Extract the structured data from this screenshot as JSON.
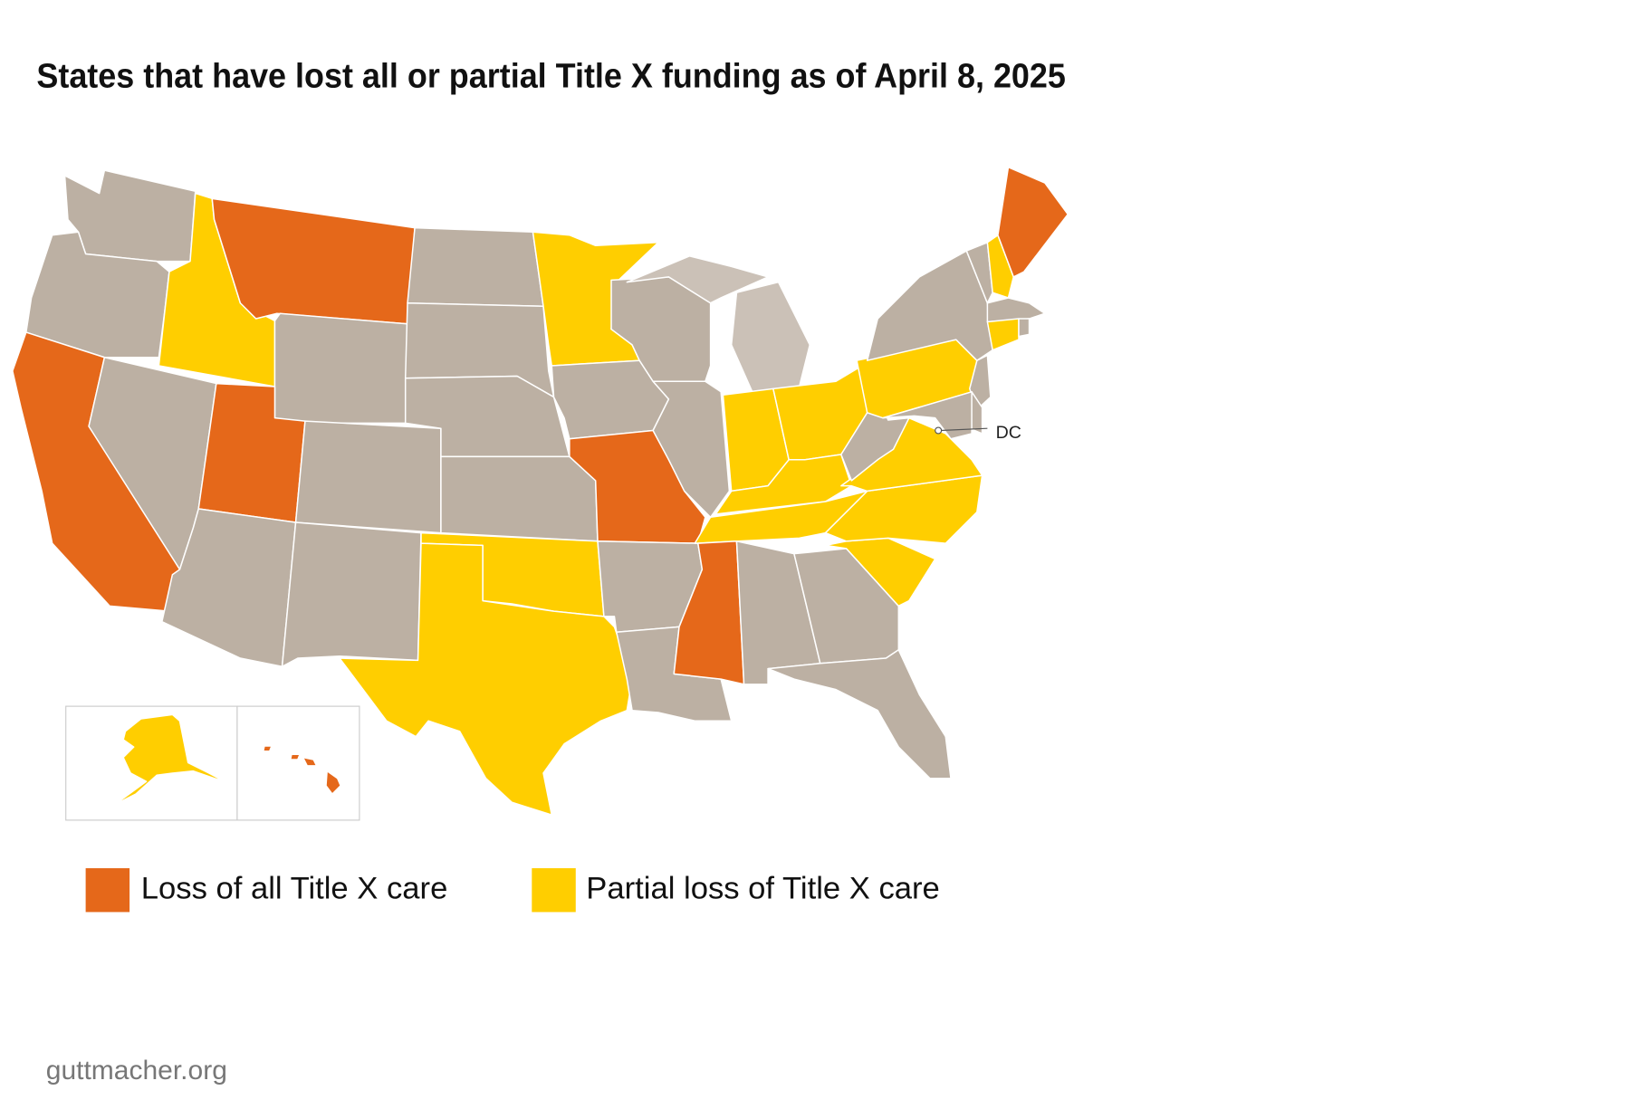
{
  "title": "States that have lost all or partial Title X funding as of April 8, 2025",
  "map": {
    "label": "DC"
  },
  "legend": [
    {
      "label": "Loss of all Title X care",
      "color": "#e5681a"
    },
    {
      "label": "Partial loss of Title X care",
      "color": "#ffce00"
    }
  ],
  "source": "guttmacher.org"
}
